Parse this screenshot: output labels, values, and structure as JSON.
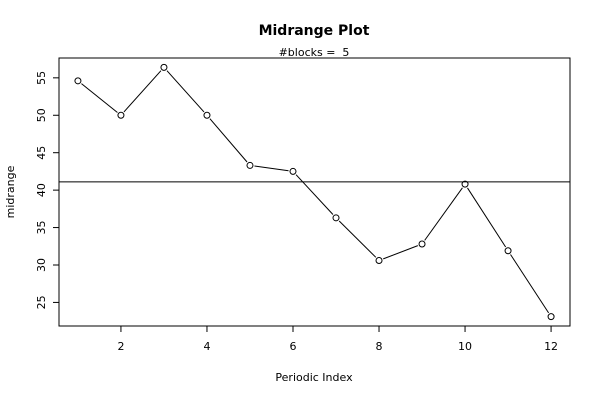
{
  "chart_data": {
    "type": "line",
    "title": "Midrange Plot",
    "subtitle": "#blocks =  5",
    "xlabel": "Periodic Index",
    "ylabel": "midrange",
    "x": [
      1,
      2,
      3,
      4,
      5,
      6,
      7,
      8,
      9,
      10,
      11,
      12
    ],
    "values": [
      54.6,
      50.0,
      56.4,
      50.0,
      43.3,
      42.5,
      36.3,
      30.6,
      32.8,
      40.8,
      31.9,
      23.1
    ],
    "reference_line": 41.1,
    "xlim": [
      0.56,
      12.44
    ],
    "ylim": [
      21.85,
      57.65
    ],
    "x_ticks": [
      2,
      4,
      6,
      8,
      10,
      12
    ],
    "y_ticks": [
      25,
      30,
      35,
      40,
      45,
      50,
      55
    ],
    "grid": false,
    "line_color": "#000000",
    "marker": "open-circle"
  }
}
